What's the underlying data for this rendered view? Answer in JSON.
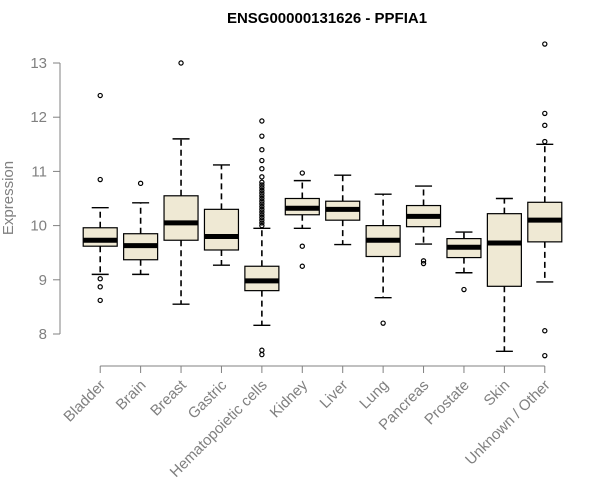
{
  "chart_data": {
    "type": "boxplot",
    "title": "ENSG00000131626 - PPFIA1",
    "xlabel": "",
    "ylabel": "Expression",
    "ylim": [
      7.6,
      13.5
    ],
    "yticks": [
      8,
      9,
      10,
      11,
      12,
      13
    ],
    "box_fill": "#efe9d4",
    "categories": [
      "Bladder",
      "Brain",
      "Breast",
      "Gastric",
      "Hematopoietic cells",
      "Kidney",
      "Liver",
      "Lung",
      "Pancreas",
      "Prostate",
      "Skin",
      "Unknown / Other"
    ],
    "boxes": [
      {
        "q1": 9.62,
        "median": 9.73,
        "q3": 9.96,
        "whisker_low": 9.1,
        "whisker_high": 10.33,
        "outliers": [
          12.4,
          10.85,
          9.02,
          8.87,
          8.62
        ]
      },
      {
        "q1": 9.37,
        "median": 9.63,
        "q3": 9.85,
        "whisker_low": 9.1,
        "whisker_high": 10.42,
        "outliers": [
          10.78
        ]
      },
      {
        "q1": 9.73,
        "median": 10.05,
        "q3": 10.55,
        "whisker_low": 8.55,
        "whisker_high": 11.6,
        "outliers": [
          13.0
        ]
      },
      {
        "q1": 9.55,
        "median": 9.8,
        "q3": 10.3,
        "whisker_low": 9.27,
        "whisker_high": 11.12,
        "outliers": []
      },
      {
        "q1": 8.8,
        "median": 8.98,
        "q3": 9.25,
        "whisker_low": 8.16,
        "whisker_high": 9.95,
        "outliers": [
          11.93,
          11.65,
          11.4,
          11.2,
          11.05,
          10.9,
          10.8,
          10.75,
          10.7,
          10.65,
          10.6,
          10.55,
          10.5,
          10.45,
          10.4,
          10.35,
          10.3,
          10.25,
          10.2,
          10.15,
          10.1,
          10.05,
          10.0,
          7.7,
          7.62
        ]
      },
      {
        "q1": 10.2,
        "median": 10.32,
        "q3": 10.5,
        "whisker_low": 9.95,
        "whisker_high": 10.83,
        "outliers": [
          10.97,
          9.62,
          9.25
        ]
      },
      {
        "q1": 10.1,
        "median": 10.3,
        "q3": 10.45,
        "whisker_low": 9.65,
        "whisker_high": 10.93,
        "outliers": []
      },
      {
        "q1": 9.43,
        "median": 9.73,
        "q3": 10.0,
        "whisker_low": 8.67,
        "whisker_high": 10.58,
        "outliers": [
          8.2
        ]
      },
      {
        "q1": 9.98,
        "median": 10.17,
        "q3": 10.37,
        "whisker_low": 9.66,
        "whisker_high": 10.73,
        "outliers": [
          9.35,
          9.3
        ]
      },
      {
        "q1": 9.41,
        "median": 9.6,
        "q3": 9.76,
        "whisker_low": 9.13,
        "whisker_high": 9.88,
        "outliers": [
          8.82
        ]
      },
      {
        "q1": 8.88,
        "median": 9.68,
        "q3": 10.22,
        "whisker_low": 7.68,
        "whisker_high": 10.5,
        "outliers": []
      },
      {
        "q1": 9.7,
        "median": 10.1,
        "q3": 10.43,
        "whisker_low": 8.96,
        "whisker_high": 11.5,
        "outliers": [
          13.35,
          12.07,
          11.85,
          11.55,
          8.06,
          7.6
        ]
      }
    ]
  }
}
